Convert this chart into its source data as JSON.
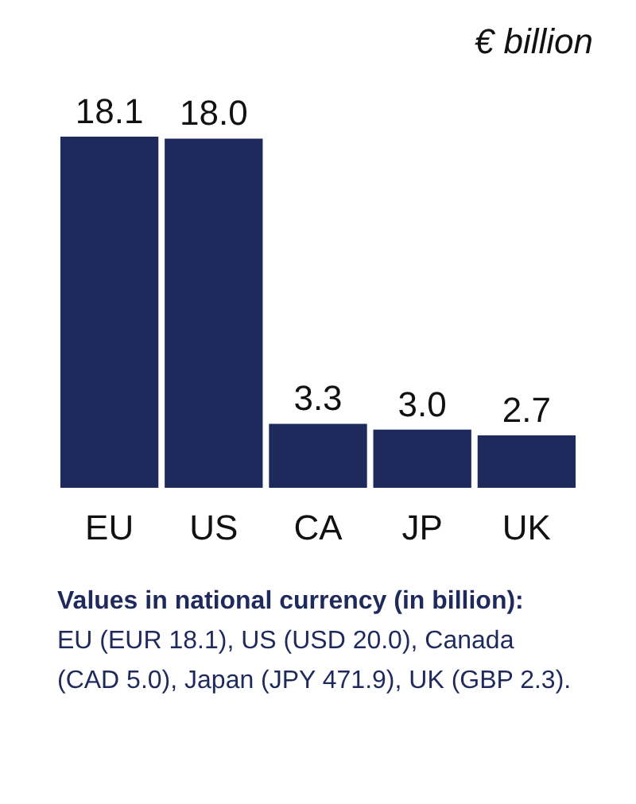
{
  "chart_data": {
    "type": "bar",
    "subtitle": "€ billion",
    "categories": [
      "EU",
      "US",
      "CA",
      "JP",
      "UK"
    ],
    "values": [
      18.1,
      18.0,
      3.3,
      3.0,
      2.7
    ],
    "value_labels": [
      "18.1",
      "18.0",
      "3.3",
      "3.0",
      "2.7"
    ],
    "color": "#1f2a5c",
    "grid": false,
    "annotations": [
      "Values in national currency (in billion):",
      "EU (EUR 18.1), US (USD 20.0), Canada (CAD 5.0), Japan (JPY 471.9), UK (GBP 2.3)."
    ]
  }
}
